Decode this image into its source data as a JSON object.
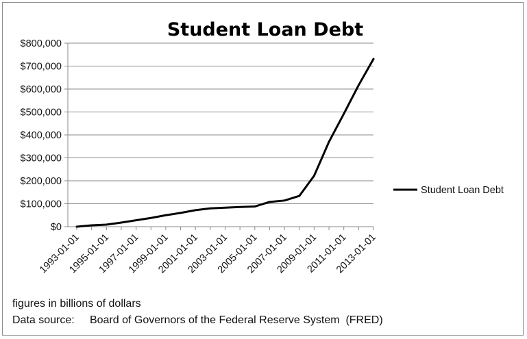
{
  "chart_data": {
    "type": "line",
    "title": "Student Loan Debt",
    "xlabel": "",
    "ylabel": "",
    "x": [
      "1993-01-01",
      "1994-01-01",
      "1995-01-01",
      "1996-01-01",
      "1997-01-01",
      "1998-01-01",
      "1999-01-01",
      "2000-01-01",
      "2001-01-01",
      "2002-01-01",
      "2003-01-01",
      "2004-01-01",
      "2005-01-01",
      "2006-01-01",
      "2007-01-01",
      "2008-01-01",
      "2009-01-01",
      "2010-01-01",
      "2011-01-01",
      "2012-01-01",
      "2013-01-01"
    ],
    "x_tick_labels": [
      "1993-01-01",
      "1995-01-01",
      "1997-01-01",
      "1999-01-01",
      "2001-01-01",
      "2003-01-01",
      "2005-01-01",
      "2007-01-01",
      "2009-01-01",
      "2011-01-01",
      "2013-01-01"
    ],
    "series": [
      {
        "name": "Student Loan Debt",
        "color": "#000000",
        "values": [
          0,
          6000,
          9000,
          18000,
          28000,
          38000,
          50000,
          60000,
          72000,
          80000,
          83000,
          86000,
          88000,
          108000,
          114000,
          134000,
          222000,
          370000,
          492000,
          617000,
          731000
        ]
      }
    ],
    "ylim": [
      0,
      800000
    ],
    "y_ticks": [
      0,
      100000,
      200000,
      300000,
      400000,
      500000,
      600000,
      700000,
      800000
    ],
    "y_tick_labels": [
      "$0",
      "$100,000",
      "$200,000",
      "$300,000",
      "$400,000",
      "$500,000",
      "$600,000",
      "$700,000",
      "$800,000"
    ],
    "grid": "horizontal",
    "legend_position": "right"
  },
  "notes": {
    "line1": "figures in billions of dollars",
    "line2": "Data source:     Board of Governors of the Federal Reserve System  (FRED)"
  }
}
